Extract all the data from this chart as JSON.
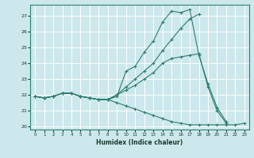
{
  "xlabel": "Humidex (Indice chaleur)",
  "bg_color": "#cce8ec",
  "grid_color": "#ffffff",
  "line_color": "#2e7d6e",
  "xlim": [
    -0.5,
    23.5
  ],
  "ylim": [
    19.8,
    27.7
  ],
  "yticks": [
    20,
    21,
    22,
    23,
    24,
    25,
    26,
    27
  ],
  "xticks": [
    0,
    1,
    2,
    3,
    4,
    5,
    6,
    7,
    8,
    9,
    10,
    11,
    12,
    13,
    14,
    15,
    16,
    17,
    18,
    19,
    20,
    21,
    22,
    23
  ],
  "series": [
    {
      "x": [
        0,
        1,
        2,
        3,
        4,
        5,
        6,
        7,
        8,
        9,
        10,
        11,
        12,
        13,
        14,
        15,
        16,
        17,
        18,
        19,
        20,
        21
      ],
      "y": [
        21.9,
        21.8,
        21.9,
        22.1,
        22.1,
        21.9,
        21.8,
        21.7,
        21.7,
        21.9,
        23.5,
        23.8,
        24.7,
        25.4,
        26.6,
        27.3,
        27.2,
        27.4,
        24.5,
        22.7,
        21.2,
        20.3
      ]
    },
    {
      "x": [
        0,
        1,
        2,
        3,
        4,
        5,
        6,
        7,
        8,
        9,
        10,
        11,
        12,
        13,
        14,
        15,
        16,
        17,
        18,
        19,
        20,
        21
      ],
      "y": [
        21.9,
        21.8,
        21.9,
        22.1,
        22.1,
        21.9,
        21.8,
        21.7,
        21.7,
        22.0,
        22.3,
        22.6,
        23.0,
        23.4,
        24.0,
        24.3,
        24.4,
        24.5,
        24.6,
        22.5,
        21.0,
        20.2
      ]
    },
    {
      "x": [
        0,
        1,
        2,
        3,
        4,
        5,
        6,
        7,
        8,
        9,
        10,
        11,
        12,
        13,
        14,
        15,
        16,
        17,
        18
      ],
      "y": [
        21.9,
        21.8,
        21.9,
        22.1,
        22.1,
        21.9,
        21.8,
        21.7,
        21.7,
        22.0,
        22.5,
        23.0,
        23.5,
        24.0,
        24.8,
        25.5,
        26.2,
        26.8,
        27.1
      ]
    },
    {
      "x": [
        0,
        1,
        2,
        3,
        4,
        5,
        6,
        7,
        8,
        9,
        10,
        11,
        12,
        13,
        14,
        15,
        16,
        17,
        18,
        19,
        20,
        21,
        22,
        23
      ],
      "y": [
        21.9,
        21.8,
        21.9,
        22.1,
        22.1,
        21.9,
        21.8,
        21.7,
        21.7,
        21.5,
        21.3,
        21.1,
        20.9,
        20.7,
        20.5,
        20.3,
        20.2,
        20.1,
        20.1,
        20.1,
        20.1,
        20.1,
        20.1,
        20.2
      ]
    }
  ]
}
